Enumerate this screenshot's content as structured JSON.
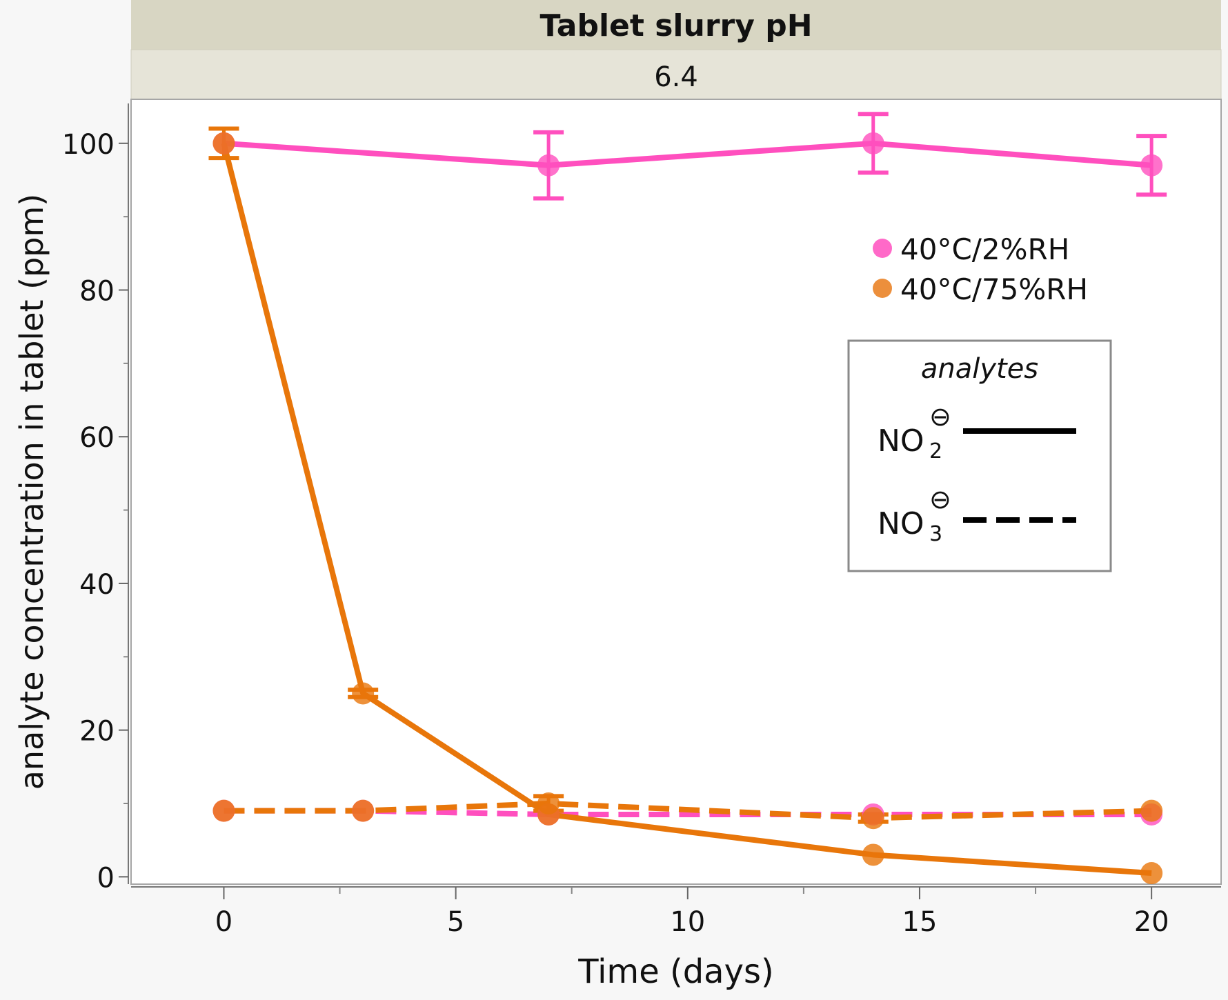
{
  "header": {
    "title": "Tablet slurry pH",
    "value": "6.4"
  },
  "legend": {
    "conditions": [
      {
        "label": "40°C/2%RH",
        "color": "#ff69c8"
      },
      {
        "label": "40°C/75%RH",
        "color": "#ec8f3c"
      }
    ],
    "analytes_title": "analytes",
    "analytes": [
      {
        "base": "NO",
        "sub": "2",
        "sup": "⊖",
        "style": "solid"
      },
      {
        "base": "NO",
        "sub": "3",
        "sup": "⊖",
        "style": "dashed"
      }
    ]
  },
  "chart_data": {
    "type": "line",
    "xlabel": "Time (days)",
    "ylabel": "analyte concentration in tablet (ppm)",
    "xlim": [
      -2,
      21.5
    ],
    "ylim": [
      -1,
      106
    ],
    "xticks": [
      0,
      5,
      10,
      15,
      20
    ],
    "yticks": [
      0,
      20,
      40,
      60,
      80,
      100
    ],
    "series": [
      {
        "name": "40°C/2%RH",
        "analyte": "NO2",
        "style": "solid",
        "color": "#ff4fbe",
        "x": [
          0,
          7,
          14,
          20
        ],
        "y": [
          100,
          97,
          100,
          97
        ],
        "err": [
          null,
          4.5,
          4,
          4
        ]
      },
      {
        "name": "40°C/75%RH",
        "analyte": "NO2",
        "style": "solid",
        "color": "#e8760a",
        "x": [
          0,
          3,
          7,
          14,
          20
        ],
        "y": [
          100,
          25,
          8.5,
          3,
          0.5
        ],
        "err": [
          2,
          0.5,
          null,
          null,
          null
        ]
      },
      {
        "name": "40°C/2%RH",
        "analyte": "NO3",
        "style": "dashed",
        "color": "#ff4fbe",
        "x": [
          0,
          3,
          7,
          14,
          20
        ],
        "y": [
          9,
          9,
          8.5,
          8.5,
          8.5
        ],
        "err": [
          null,
          null,
          null,
          null,
          null
        ]
      },
      {
        "name": "40°C/75%RH",
        "analyte": "NO3",
        "style": "dashed",
        "color": "#e8760a",
        "x": [
          0,
          3,
          7,
          14,
          20
        ],
        "y": [
          9,
          9,
          10,
          8,
          9
        ],
        "err": [
          null,
          null,
          1,
          0.5,
          null
        ]
      }
    ]
  }
}
